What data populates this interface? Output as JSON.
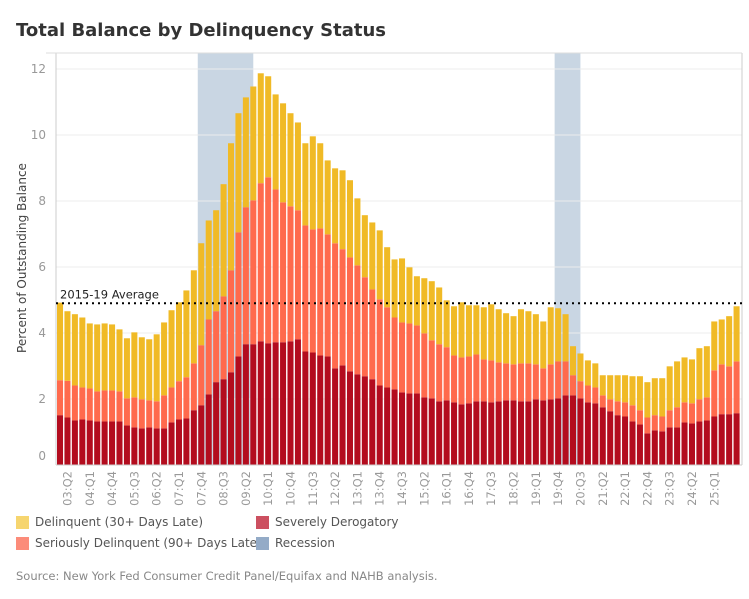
{
  "title": "Total Balance by Delinquency Status",
  "source": "Source: New York Fed Consumer Credit Panel/Equifax and NAHB analysis.",
  "colors": {
    "delinquent": "#F0BA26",
    "seriously": "#FF6A4D",
    "severely": "#B30C1E",
    "recession": "#C9D6E3",
    "legend_delinquent": "#F6D56F",
    "legend_seriously": "#FC8C7A",
    "legend_severely": "#CC5060",
    "legend_recession": "#94ABC7"
  },
  "legend": [
    {
      "label": "Delinquent (30+ Days Late)",
      "color_key": "legend_delinquent"
    },
    {
      "label": "Severely Derogatory",
      "color_key": "legend_severely"
    },
    {
      "label": "Seriously Delinquent (90+ Days Late)",
      "color_key": "legend_seriously"
    },
    {
      "label": "Recession",
      "color_key": "legend_recession"
    }
  ],
  "chart_data": {
    "type": "bar",
    "stacked": true,
    "title": "Total Balance by Delinquency Status",
    "xlabel": "",
    "ylabel": "Percent of Outstanding Balance",
    "ylim": [
      0,
      12.5
    ],
    "yticks": [
      0,
      2,
      4,
      6,
      8,
      10,
      12
    ],
    "grid": true,
    "legend_position": "bottom",
    "first_quarter": "03:Q1",
    "xtick_labels": [
      "03:Q2",
      "04:Q1",
      "04:Q4",
      "05:Q3",
      "06:Q2",
      "07:Q1",
      "07:Q4",
      "08:Q3",
      "09:Q2",
      "10:Q1",
      "10:Q4",
      "11:Q3",
      "12:Q2",
      "13:Q1",
      "13:Q4",
      "14:Q3",
      "15:Q2",
      "16:Q1",
      "16:Q4",
      "17:Q3",
      "18:Q2",
      "19:Q1",
      "19:Q4",
      "20:Q3",
      "21:Q2",
      "22:Q1",
      "22:Q4",
      "23:Q3",
      "24:Q2",
      "25:Q1"
    ],
    "reference_line": {
      "label": "2015-19 Average",
      "value": 4.9
    },
    "recessions": [
      [
        "07:Q4",
        "09:Q3"
      ],
      [
        "19:Q4",
        "20:Q3"
      ]
    ],
    "series": [
      {
        "name": "Severely Derogatory",
        "color_key": "severely",
        "values": [
          1.51,
          1.44,
          1.35,
          1.38,
          1.35,
          1.32,
          1.32,
          1.32,
          1.32,
          1.2,
          1.14,
          1.11,
          1.14,
          1.11,
          1.11,
          1.29,
          1.38,
          1.41,
          1.66,
          1.81,
          2.14,
          2.51,
          2.6,
          2.81,
          3.29,
          3.66,
          3.66,
          3.75,
          3.69,
          3.72,
          3.72,
          3.75,
          3.81,
          3.44,
          3.41,
          3.32,
          3.29,
          2.93,
          3.02,
          2.84,
          2.75,
          2.69,
          2.6,
          2.41,
          2.35,
          2.29,
          2.2,
          2.17,
          2.17,
          2.05,
          2.02,
          1.93,
          1.96,
          1.9,
          1.84,
          1.87,
          1.93,
          1.93,
          1.9,
          1.93,
          1.96,
          1.96,
          1.93,
          1.93,
          1.99,
          1.96,
          1.99,
          2.02,
          2.11,
          2.11,
          2.02,
          1.9,
          1.87,
          1.75,
          1.63,
          1.51,
          1.47,
          1.32,
          1.23,
          0.96,
          1.05,
          1.02,
          1.14,
          1.14,
          1.29,
          1.26,
          1.32,
          1.35,
          1.47,
          1.54,
          1.54,
          1.57
        ]
      },
      {
        "name": "Seriously Delinquent (90+ Days Late)",
        "color_key": "seriously",
        "values": [
          1.06,
          1.11,
          1.06,
          0.97,
          0.97,
          0.91,
          0.94,
          0.94,
          0.91,
          0.82,
          0.91,
          0.88,
          0.82,
          0.82,
          1.0,
          1.06,
          1.16,
          1.25,
          1.42,
          1.82,
          2.27,
          2.15,
          2.51,
          3.09,
          3.76,
          4.15,
          4.36,
          4.79,
          5.03,
          4.63,
          4.24,
          4.09,
          3.91,
          3.82,
          3.73,
          3.85,
          3.7,
          3.79,
          3.52,
          3.45,
          3.3,
          3.0,
          2.72,
          2.61,
          2.43,
          2.18,
          2.12,
          2.12,
          2.06,
          1.94,
          1.76,
          1.73,
          1.61,
          1.42,
          1.42,
          1.42,
          1.42,
          1.27,
          1.27,
          1.18,
          1.12,
          1.09,
          1.15,
          1.15,
          1.06,
          0.97,
          1.06,
          1.12,
          1.03,
          0.61,
          0.52,
          0.51,
          0.48,
          0.36,
          0.36,
          0.42,
          0.43,
          0.49,
          0.43,
          0.48,
          0.46,
          0.45,
          0.52,
          0.61,
          0.61,
          0.61,
          0.67,
          0.7,
          1.4,
          1.51,
          1.45,
          1.57
        ]
      },
      {
        "name": "Delinquent (30+ Days Late)",
        "color_key": "delinquent",
        "values": [
          2.35,
          2.11,
          2.16,
          2.12,
          1.97,
          2.03,
          2.03,
          2.0,
          1.88,
          1.82,
          1.97,
          1.88,
          1.85,
          2.03,
          2.21,
          2.34,
          2.39,
          2.63,
          2.82,
          3.09,
          3.0,
          3.06,
          3.4,
          3.85,
          3.61,
          3.33,
          3.45,
          3.33,
          3.06,
          2.88,
          3.0,
          2.82,
          2.66,
          2.49,
          2.82,
          2.58,
          2.24,
          2.27,
          2.39,
          2.34,
          2.03,
          1.88,
          2.03,
          2.09,
          1.82,
          1.76,
          1.94,
          1.7,
          1.49,
          1.67,
          1.79,
          1.72,
          1.42,
          1.49,
          1.67,
          1.55,
          1.49,
          1.58,
          1.7,
          1.61,
          1.52,
          1.46,
          1.64,
          1.58,
          1.52,
          1.42,
          1.73,
          1.61,
          1.43,
          0.88,
          0.84,
          0.76,
          0.73,
          0.61,
          0.73,
          0.79,
          0.82,
          0.88,
          1.03,
          1.07,
          1.12,
          1.16,
          1.33,
          1.39,
          1.36,
          1.33,
          1.55,
          1.55,
          1.48,
          1.36,
          1.52,
          1.67
        ]
      }
    ]
  }
}
